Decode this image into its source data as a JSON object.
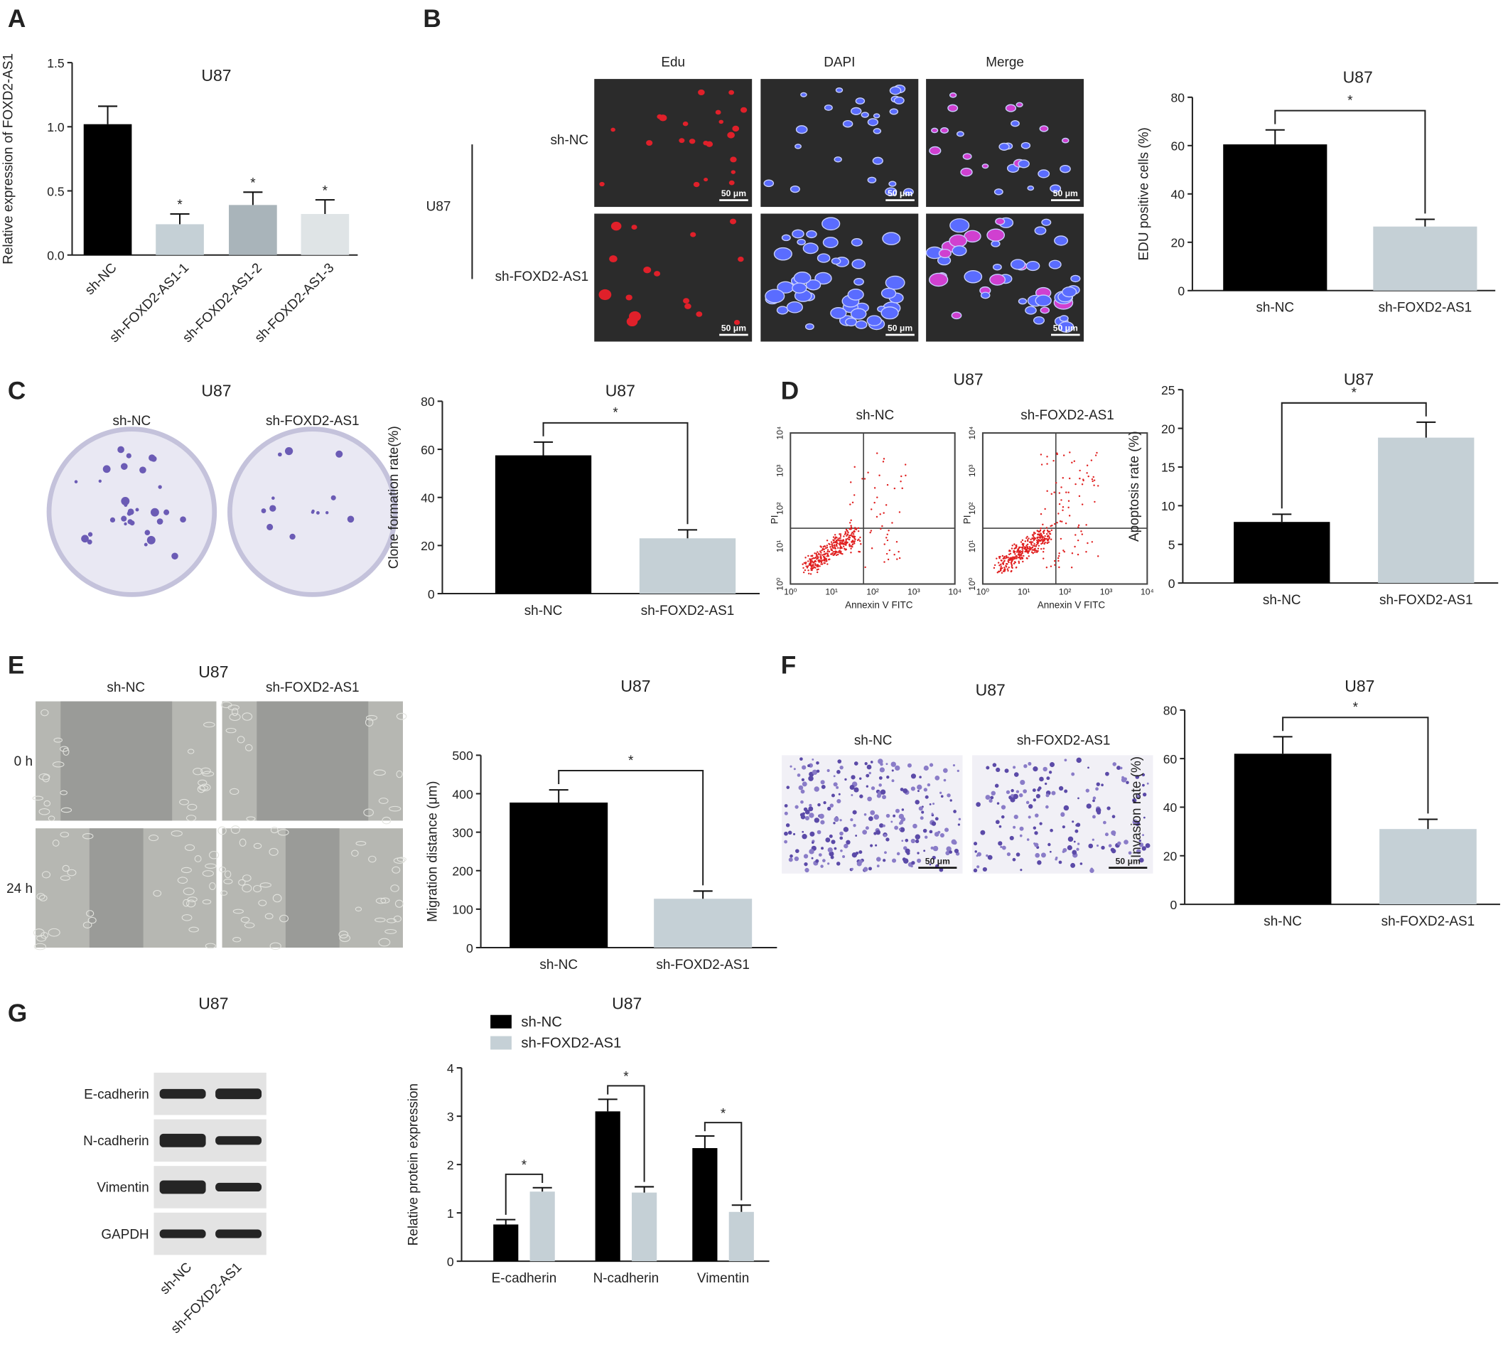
{
  "chart_data": [
    {
      "type": "bar",
      "title": "U87",
      "ylabel": "Relative expression of FOXD2-AS1",
      "categories": [
        "sh-NC",
        "sh-FOXD2-AS1-1",
        "sh-FOXD2-AS1-2",
        "sh-FOXD2-AS1-3"
      ],
      "values": [
        1.02,
        0.24,
        0.39,
        0.32
      ],
      "errors": [
        0.14,
        0.08,
        0.1,
        0.11
      ],
      "colors": [
        "#000000",
        "#c5d0d6",
        "#a9b4ba",
        "#dfe4e6"
      ],
      "ylim": [
        0,
        1.5
      ],
      "yticks": [
        {
          "value": 0,
          "label": "0.0"
        },
        0.5,
        {
          "value": 1,
          "label": "1.0"
        },
        1.5
      ],
      "significance": [
        null,
        "*",
        "*",
        "*"
      ]
    },
    {
      "type": "bar",
      "title": "U87",
      "ylabel": "EDU positive cells (%)",
      "categories": [
        "sh-NC",
        "sh-FOXD2-AS1"
      ],
      "values": [
        60.5,
        26.5
      ],
      "errors": [
        6,
        3
      ],
      "colors": [
        "#000000",
        "#c5d0d6"
      ],
      "ylim": [
        0,
        80
      ],
      "yticks": [
        0,
        20,
        40,
        60,
        80
      ],
      "significance": "*"
    },
    {
      "type": "bar",
      "title": "U87",
      "ylabel": "Clone formation rate(%)",
      "categories": [
        "sh-NC",
        "sh-FOXD2-AS1"
      ],
      "values": [
        57.5,
        23
      ],
      "errors": [
        5.5,
        3.5
      ],
      "colors": [
        "#000000",
        "#c5d0d6"
      ],
      "ylim": [
        0,
        80
      ],
      "yticks": [
        0,
        20,
        40,
        60,
        80
      ],
      "significance": "*"
    },
    {
      "type": "bar",
      "title": "U87",
      "ylabel": "Apoptosis rate (%)",
      "categories": [
        "sh-NC",
        "sh-FOXD2-AS1"
      ],
      "values": [
        7.9,
        18.8
      ],
      "errors": [
        1,
        2
      ],
      "colors": [
        "#000000",
        "#c5d0d6"
      ],
      "ylim": [
        0,
        25
      ],
      "yticks": [
        0,
        5,
        10,
        15,
        20,
        25
      ],
      "significance": "*"
    },
    {
      "type": "bar",
      "title": "U87",
      "ylabel": "Migration distance (μm)",
      "categories": [
        "sh-NC",
        "sh-FOXD2-AS1"
      ],
      "values": [
        377,
        127
      ],
      "errors": [
        33,
        20
      ],
      "colors": [
        "#000000",
        "#c5d0d6"
      ],
      "ylim": [
        0,
        500
      ],
      "yticks": [
        0,
        100,
        200,
        300,
        400,
        500
      ],
      "significance": "*"
    },
    {
      "type": "bar",
      "title": "U87",
      "ylabel": "Invasion rate (%)",
      "categories": [
        "sh-NC",
        "sh-FOXD2-AS1"
      ],
      "values": [
        62,
        31
      ],
      "errors": [
        7,
        4
      ],
      "colors": [
        "#000000",
        "#c5d0d6"
      ],
      "ylim": [
        0,
        80
      ],
      "yticks": [
        0,
        20,
        40,
        60,
        80
      ],
      "significance": "*"
    },
    {
      "type": "grouped_bar",
      "title": "U87",
      "ylabel": "Relative protein expression",
      "categories": [
        "E-cadherin",
        "N-cadherin",
        "Vimentin"
      ],
      "series": [
        {
          "name": "sh-NC",
          "color": "#000000",
          "values": [
            0.76,
            3.1,
            2.34
          ],
          "errors": [
            0.1,
            0.25,
            0.25
          ]
        },
        {
          "name": "sh-FOXD2-AS1",
          "color": "#c5d0d6",
          "values": [
            1.44,
            1.42,
            1.02
          ],
          "errors": [
            0.08,
            0.12,
            0.14
          ]
        }
      ],
      "ylim": [
        0,
        4
      ],
      "yticks": [
        0,
        1,
        2,
        3,
        4
      ],
      "significance": [
        "*",
        "*",
        "*"
      ],
      "legend": "top-left"
    }
  ],
  "figure": {
    "panels": [
      "A",
      "B",
      "C",
      "D",
      "E",
      "F",
      "G"
    ],
    "edu": {
      "columns": [
        "Edu",
        "DAPI",
        "Merge"
      ],
      "rows": [
        "sh-NC",
        "sh-FOXD2-AS1"
      ],
      "cell_line": "U87",
      "scale": "50 μm"
    },
    "colony": {
      "title": "U87",
      "labels": [
        "sh-NC",
        "sh-FOXD2-AS1"
      ]
    },
    "flow": {
      "title": "U87",
      "labels": [
        "sh-NC",
        "sh-FOXD2-AS1"
      ],
      "ylabel": "PI",
      "xlabel": "Annexin V FITC",
      "ticks": [
        "10⁰",
        "10¹",
        "10²",
        "10³",
        "10⁴"
      ]
    },
    "wound": {
      "title": "U87",
      "labels": [
        "sh-NC",
        "sh-FOXD2-AS1"
      ],
      "times": [
        "0 h",
        "24 h"
      ]
    },
    "transwell": {
      "title": "U87",
      "labels": [
        "sh-NC",
        "sh-FOXD2-AS1"
      ],
      "scale": "50 μm"
    },
    "blot": {
      "title": "U87",
      "proteins": [
        "E-cadherin",
        "N-cadherin",
        "Vimentin",
        "GAPDH"
      ],
      "lanes": [
        "sh-NC",
        "sh-FOXD2-AS1"
      ]
    }
  }
}
